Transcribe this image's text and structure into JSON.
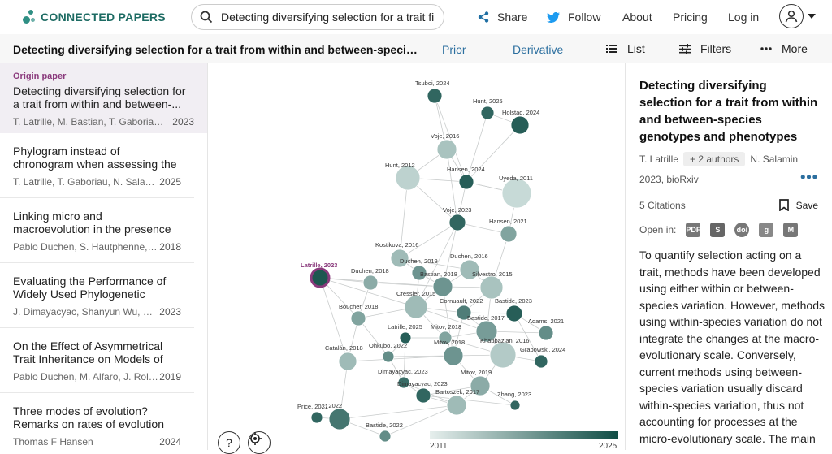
{
  "brand": {
    "name": "CONNECTED PAPERS"
  },
  "search": {
    "value": "Detecting diversifying selection for a trait fi"
  },
  "topnav": {
    "share": "Share",
    "follow": "Follow",
    "about": "About",
    "pricing": "Pricing",
    "login": "Log in"
  },
  "subbar": {
    "title": "Detecting diversifying selection for a trait from within and between-species gen...",
    "prior": "Prior",
    "derivative": "Derivative",
    "list": "List",
    "filters": "Filters",
    "more": "More"
  },
  "papers": [
    {
      "label": "Origin paper",
      "title": "Detecting diversifying selection for a trait from within and between-...",
      "authors": "T. Latrille, M. Bastian, T. Gaboriau, ...",
      "year": "2023"
    },
    {
      "title": "Phylogram instead of chronogram when assessing the neutral...",
      "authors": "T. Latrille, T. Gaboriau, N. Salamin",
      "year": "2025"
    },
    {
      "title": "Linking micro and macroevolution in the presence of migration",
      "authors": "Pablo Duchen, S. Hautphenne, L....",
      "year": "2018"
    },
    {
      "title": "Evaluating the Performance of Widely Used Phylogenetic Models...",
      "authors": "J. Dimayacyac, Shanyun Wu, Daoh...",
      "year": "2023"
    },
    {
      "title": "On the Effect of Asymmetrical Trait Inheritance on Models of Trait...",
      "authors": "Pablo Duchen, M. Alfaro, J. Rolland...",
      "year": "2019"
    },
    {
      "title": "Three modes of evolution?Remarks on rates of evolution and time...",
      "authors": "Thomas F Hansen",
      "year": "2024"
    }
  ],
  "graph": {
    "legend_start": "2011",
    "legend_end": "2025",
    "help_label": "?",
    "nodes": [
      {
        "label": "Tsuboi, 2024"
      },
      {
        "label": "Hunt, 2025"
      },
      {
        "label": "Holstad, 2024"
      },
      {
        "label": "Voje, 2016"
      },
      {
        "label": "Hunt, 2012"
      },
      {
        "label": "Hansen, 2024"
      },
      {
        "label": "Uyeda, 2011"
      },
      {
        "label": "Voje, 2023"
      },
      {
        "label": "Hansen, 2021"
      },
      {
        "label": "Kostikova, 2016"
      },
      {
        "label": "Duchen, 2019"
      },
      {
        "label": "Duchen, 2016"
      },
      {
        "label": "Latrille, 2023"
      },
      {
        "label": "Duchen, 2018"
      },
      {
        "label": "Bastian, 2018"
      },
      {
        "label": "Silvestro, 2015"
      },
      {
        "label": "Cressler, 2015"
      },
      {
        "label": "Cornuault, 2022"
      },
      {
        "label": "Bastide, 2023"
      },
      {
        "label": "Boucher, 2018"
      },
      {
        "label": "Bastide, 2017"
      },
      {
        "label": "Adams, 2021"
      },
      {
        "label": "Latrille, 2025"
      },
      {
        "label": "Mitov, 2018"
      },
      {
        "label": "Ohkubo, 2022"
      },
      {
        "label": "Mitov, 2018"
      },
      {
        "label": "Khabbazian, 2016"
      },
      {
        "label": "Grabowski, 2024"
      },
      {
        "label": "Catalán, 2018"
      },
      {
        "label": "Dimayacyac, 2023"
      },
      {
        "label": "Mitov, 2019"
      },
      {
        "label": "Dimayacyac, 2023"
      },
      {
        "label": "Bartoszek, 2017"
      },
      {
        "label": "Zhang, 2023"
      },
      {
        "label": "Price, 2021"
      },
      {
        "label": "..., 2022"
      },
      {
        "label": "Bastide, 2022"
      }
    ]
  },
  "detail": {
    "title": "Detecting diversifying selection for a trait from within and between-species genotypes and phenotypes",
    "author_first": "T. Latrille",
    "authors_more": "+ 2 authors",
    "author_last": "N. Salamin",
    "venue": "2023, bioRxiv",
    "more_dots": "•••",
    "citations": "5 Citations",
    "save": "Save",
    "open_in": "Open in:",
    "abstract": "To quantify selection acting on a trait, methods have been developed using either within or between-species variation. However, methods using within-species variation do not integrate the changes at the macro-evolutionary scale. Conversely, current methods using between-species variation usually discard within-species variation, thus not accounting for processes at the micro-evolutionary scale. The main"
  },
  "colors": {
    "accent": "#2c6f9f",
    "brand": "#1d6b63",
    "origin": "#8a3a7c",
    "node_dark": "#134f48",
    "node_light": "#d7e6e4"
  }
}
